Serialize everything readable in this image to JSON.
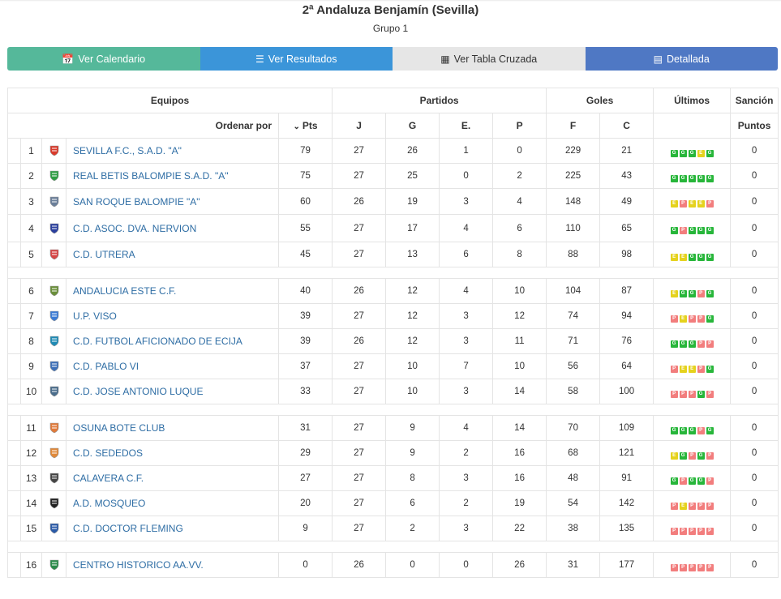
{
  "header": {
    "title": "2ª Andaluza Benjamín (Sevilla)",
    "subtitle": "Grupo 1"
  },
  "buttons": [
    {
      "label": "Ver Calendario",
      "icon": "calendar-icon"
    },
    {
      "label": "Ver Resultados",
      "icon": "list-icon"
    },
    {
      "label": "Ver Tabla Cruzada",
      "icon": "table-icon"
    },
    {
      "label": "Detallada",
      "icon": "id-card-icon"
    }
  ],
  "table": {
    "group_headers": {
      "teams": "Equipos",
      "matches": "Partidos",
      "goals": "Goles",
      "last": "Últimos",
      "sanction": "Sanción"
    },
    "sort_label": "Ordenar por",
    "columns": {
      "pts": "Pts",
      "j": "J",
      "g": "G",
      "e": "E.",
      "p": "P",
      "f": "F",
      "c": "C",
      "sanction": "Puntos"
    },
    "groups": [
      [
        {
          "pos": "1",
          "team": "SEVILLA F.C., S.A.D. \"A\"",
          "pts": "79",
          "j": "27",
          "g": "26",
          "e": "1",
          "p": "0",
          "f": "229",
          "c": "21",
          "last": [
            "G",
            "G",
            "G",
            "E",
            "G"
          ],
          "sanction": "0",
          "crest": "#d93a2b"
        },
        {
          "pos": "2",
          "team": "REAL BETIS BALOMPIE S.A.D. \"A\"",
          "pts": "75",
          "j": "27",
          "g": "25",
          "e": "0",
          "p": "2",
          "f": "225",
          "c": "43",
          "last": [
            "G",
            "G",
            "G",
            "G",
            "G"
          ],
          "sanction": "0",
          "crest": "#2f9e44"
        },
        {
          "pos": "3",
          "team": "SAN ROQUE BALOMPIE \"A\"",
          "pts": "60",
          "j": "26",
          "g": "19",
          "e": "3",
          "p": "4",
          "f": "148",
          "c": "49",
          "last": [
            "E",
            "P",
            "E",
            "E",
            "P"
          ],
          "sanction": "0",
          "crest": "#6b7f9a"
        },
        {
          "pos": "4",
          "team": "C.D. ASOC. DVA. NERVION",
          "pts": "55",
          "j": "27",
          "g": "17",
          "e": "4",
          "p": "6",
          "f": "110",
          "c": "65",
          "last": [
            "G",
            "P",
            "G",
            "G",
            "G"
          ],
          "sanction": "0",
          "crest": "#2a3f9e"
        },
        {
          "pos": "5",
          "team": "C.D. UTRERA",
          "pts": "45",
          "j": "27",
          "g": "13",
          "e": "6",
          "p": "8",
          "f": "88",
          "c": "98",
          "last": [
            "E",
            "E",
            "G",
            "G",
            "G"
          ],
          "sanction": "0",
          "crest": "#d64545"
        }
      ],
      [
        {
          "pos": "6",
          "team": "ANDALUCIA ESTE C.F.",
          "pts": "40",
          "j": "26",
          "g": "12",
          "e": "4",
          "p": "10",
          "f": "104",
          "c": "87",
          "last": [
            "E",
            "G",
            "G",
            "P",
            "G"
          ],
          "sanction": "0",
          "crest": "#6a8f3a"
        },
        {
          "pos": "7",
          "team": "U.P. VISO",
          "pts": "39",
          "j": "27",
          "g": "12",
          "e": "3",
          "p": "12",
          "f": "74",
          "c": "94",
          "last": [
            "P",
            "E",
            "P",
            "P",
            "G"
          ],
          "sanction": "0",
          "crest": "#3a7bd5"
        },
        {
          "pos": "8",
          "team": "C.D. FUTBOL AFICIONADO DE ECIJA",
          "pts": "39",
          "j": "26",
          "g": "12",
          "e": "3",
          "p": "11",
          "f": "71",
          "c": "76",
          "last": [
            "G",
            "G",
            "G",
            "P",
            "P"
          ],
          "sanction": "0",
          "crest": "#1f8bb5"
        },
        {
          "pos": "9",
          "team": "C.D. PABLO VI",
          "pts": "37",
          "j": "27",
          "g": "10",
          "e": "7",
          "p": "10",
          "f": "56",
          "c": "64",
          "last": [
            "P",
            "E",
            "E",
            "P",
            "G"
          ],
          "sanction": "0",
          "crest": "#3c6fb8"
        },
        {
          "pos": "10",
          "team": "C.D. JOSE ANTONIO LUQUE",
          "pts": "33",
          "j": "27",
          "g": "10",
          "e": "3",
          "p": "14",
          "f": "58",
          "c": "100",
          "last": [
            "P",
            "P",
            "P",
            "G",
            "P"
          ],
          "sanction": "0",
          "crest": "#4a6d8c"
        }
      ],
      [
        {
          "pos": "11",
          "team": "OSUNA BOTE CLUB",
          "pts": "31",
          "j": "27",
          "g": "9",
          "e": "4",
          "p": "14",
          "f": "70",
          "c": "109",
          "last": [
            "G",
            "G",
            "G",
            "P",
            "G"
          ],
          "sanction": "0",
          "crest": "#e07a3a"
        },
        {
          "pos": "12",
          "team": "C.D. SEDEDOS",
          "pts": "29",
          "j": "27",
          "g": "9",
          "e": "2",
          "p": "16",
          "f": "68",
          "c": "121",
          "last": [
            "E",
            "G",
            "P",
            "G",
            "P"
          ],
          "sanction": "0",
          "crest": "#e0893a"
        },
        {
          "pos": "13",
          "team": "CALAVERA C.F.",
          "pts": "27",
          "j": "27",
          "g": "8",
          "e": "3",
          "p": "16",
          "f": "48",
          "c": "91",
          "last": [
            "G",
            "P",
            "G",
            "G",
            "P"
          ],
          "sanction": "0",
          "crest": "#444444"
        },
        {
          "pos": "14",
          "team": "A.D. MOSQUEO",
          "pts": "20",
          "j": "27",
          "g": "6",
          "e": "2",
          "p": "19",
          "f": "54",
          "c": "142",
          "last": [
            "P",
            "E",
            "P",
            "P",
            "P"
          ],
          "sanction": "0",
          "crest": "#222222"
        },
        {
          "pos": "15",
          "team": "C.D. DOCTOR FLEMING",
          "pts": "9",
          "j": "27",
          "g": "2",
          "e": "3",
          "p": "22",
          "f": "38",
          "c": "135",
          "last": [
            "P",
            "P",
            "P",
            "P",
            "P"
          ],
          "sanction": "0",
          "crest": "#2a5aa8"
        }
      ],
      [
        {
          "pos": "16",
          "team": "CENTRO HISTORICO AA.VV.",
          "pts": "0",
          "j": "26",
          "g": "0",
          "e": "0",
          "p": "26",
          "f": "31",
          "c": "177",
          "last": [
            "P",
            "P",
            "P",
            "P",
            "P"
          ],
          "sanction": "0",
          "crest": "#2b8a4a"
        }
      ]
    ]
  },
  "colors": {
    "win": "#27b63a",
    "draw": "#e5d21d",
    "loss": "#f27d7d",
    "link": "#2e6da4"
  }
}
